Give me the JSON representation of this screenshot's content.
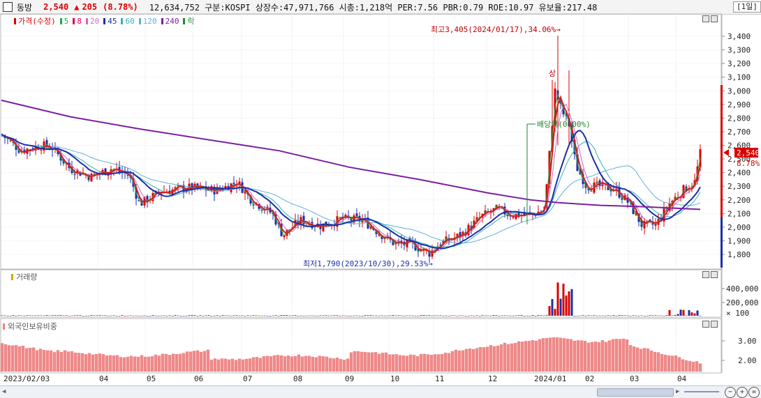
{
  "header": {
    "name": "동방",
    "price": "2,540",
    "change_arrow": "▲",
    "change": "205",
    "change_pct": "(8.78%)",
    "info": "12,634,752  구분:KOSPI 상장수:47,971,766 시총:1,218억 PER:7.56 PBR:0.79 ROE:10.97 유보율:217.48",
    "period": "[1일]"
  },
  "price_panel": {
    "legend": [
      {
        "label": "가격(수정)",
        "color": "#d90000"
      },
      {
        "label": "5",
        "color": "#23a84a"
      },
      {
        "label": "8",
        "color": "#e3004f"
      },
      {
        "label": "20",
        "color": "#c86ac8"
      },
      {
        "label": "45",
        "color": "#1a2fa8"
      },
      {
        "label": "60",
        "color": "#3bb0b0"
      },
      {
        "label": "120",
        "color": "#5fb0d8"
      },
      {
        "label": "240",
        "color": "#7b1fa2"
      },
      {
        "label": "락",
        "color": "#1a8a2a"
      }
    ],
    "y_ticks": [
      "3,400",
      "3,300",
      "3,200",
      "3,100",
      "3,000",
      "2,900",
      "2,800",
      "2,700",
      "2,600",
      "2,500",
      "2,400",
      "2,300",
      "2,200",
      "2,100",
      "2,000",
      "1,900",
      "1,800"
    ],
    "current_label": "2,540",
    "current_pct": "8.78%",
    "high_annotation": "최고3,405(2024/01/17),34.06%→",
    "low_annotation": "최저1,790(2023/10/30),29.53%→",
    "dividend_annotation": "배당락(0.00%)",
    "upper_limit_marker": "상"
  },
  "volume_panel": {
    "title": "거래량",
    "y_ticks": [
      "400,000",
      "200,000",
      "× 100"
    ]
  },
  "foreign_panel": {
    "title": "외국인보유비중",
    "y_ticks": [
      "3.00",
      "2.00"
    ]
  },
  "x_axis": {
    "labels": [
      "2023/02/03",
      "04",
      "05",
      "06",
      "07",
      "08",
      "09",
      "10",
      "11",
      "12",
      "2024/01",
      "02",
      "03",
      "04"
    ]
  },
  "colors": {
    "up": "#d90000",
    "down": "#1a2fa8",
    "ma240": "#7b1fa2",
    "ma45": "#1a2fa8",
    "ma8": "#d02020"
  }
}
